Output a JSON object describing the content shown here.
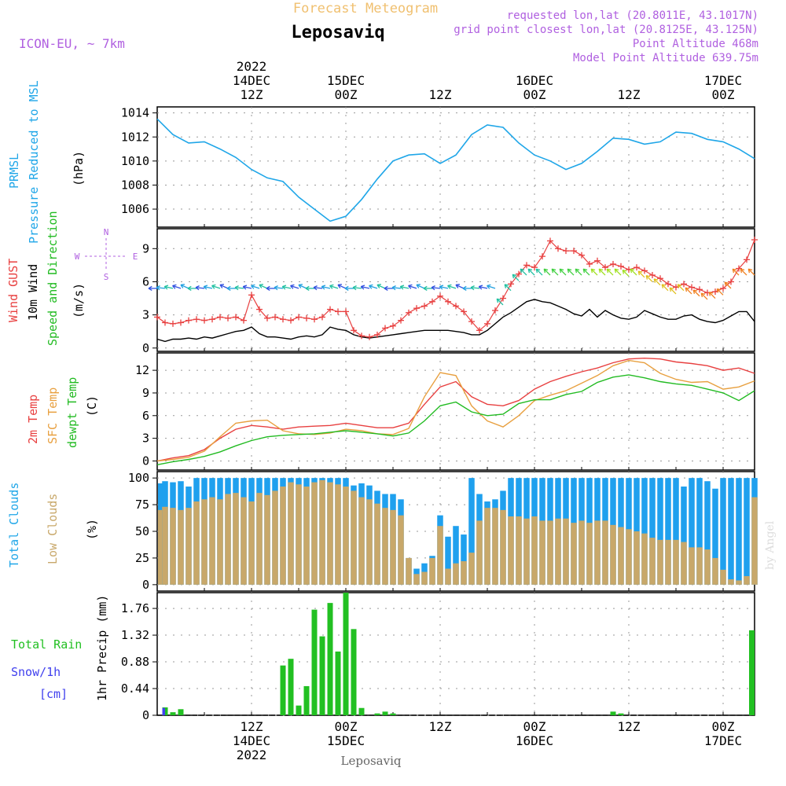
{
  "header": {
    "forecast_title": "Forecast Meteogram",
    "model": "ICON-EU, ~ 7km",
    "location": "Leposaviq",
    "requested": "requested lon,lat (20.8011E, 43.1017N)",
    "grid_point": "grid point closest lon,lat (20.8125E, 43.125N)",
    "point_altitude": "Point Altitude 468m",
    "model_altitude": "Model Point Altitude 639.75m",
    "footer_location": "Leposaviq",
    "watermark": "by Angel"
  },
  "colors": {
    "pressure": "#1fa6e8",
    "gust": "#e84040",
    "wind": "#000000",
    "temp": "#e84040",
    "sfc": "#e8a040",
    "dewpt": "#22bb22",
    "total_clouds": "#1fa0ee",
    "low_clouds": "#c8a86a",
    "rain": "#22c022",
    "snow": "#4040ee",
    "axis_label_violet": "#b060e0"
  },
  "time_axis": {
    "top_ticks": [
      {
        "hour": 12,
        "lines": [
          "2022",
          "14DEC",
          "12Z"
        ]
      },
      {
        "hour": 24,
        "lines": [
          "15DEC",
          "00Z"
        ]
      },
      {
        "hour": 36,
        "lines": [
          "12Z"
        ]
      },
      {
        "hour": 48,
        "lines": [
          "16DEC",
          "00Z"
        ]
      },
      {
        "hour": 60,
        "lines": [
          "12Z"
        ]
      },
      {
        "hour": 72,
        "lines": [
          "17DEC",
          "00Z"
        ]
      }
    ],
    "bottom_ticks": [
      {
        "hour": 12,
        "lines": [
          "12Z",
          "14DEC",
          "2022"
        ]
      },
      {
        "hour": 24,
        "lines": [
          "00Z",
          "15DEC"
        ]
      },
      {
        "hour": 36,
        "lines": [
          "12Z"
        ]
      },
      {
        "hour": 48,
        "lines": [
          "00Z",
          "16DEC"
        ]
      },
      {
        "hour": 60,
        "lines": [
          "12Z"
        ]
      },
      {
        "hour": 72,
        "lines": [
          "00Z",
          "17DEC"
        ]
      }
    ]
  },
  "panel_labels": {
    "pressure": [
      "PRMSL",
      "Pressure Reduced to MSL",
      "(hPa)"
    ],
    "wind": [
      "Wind GUST",
      "10m Wind",
      "Speed and Direction",
      "(m/s)"
    ],
    "compass": {
      "n": "N",
      "s": "S",
      "w": "W",
      "e": "E"
    },
    "temp": [
      "2m Temp",
      "SFC Temp",
      "dewpt Temp",
      "(C)"
    ],
    "clouds": [
      "Total Clouds",
      "Low Clouds",
      "(%)"
    ],
    "precip": [
      "Total Rain",
      "Snow/1h",
      "[cm]",
      "1hr Precip (mm)"
    ]
  },
  "chart_data": [
    {
      "type": "line",
      "name": "pressure",
      "x_hours": [
        0,
        2,
        4,
        6,
        8,
        10,
        12,
        14,
        16,
        18,
        20,
        22,
        24,
        26,
        28,
        30,
        32,
        34,
        36,
        38,
        40,
        42,
        44,
        46,
        48,
        50,
        52,
        54,
        56,
        58,
        60,
        62,
        64,
        66,
        68,
        70,
        72,
        74,
        76
      ],
      "series": [
        {
          "name": "PRMSL",
          "values": [
            1013.5,
            1012.2,
            1011.5,
            1011.6,
            1011.0,
            1010.3,
            1009.3,
            1008.6,
            1008.3,
            1007.0,
            1006.0,
            1005.0,
            1005.4,
            1006.8,
            1008.5,
            1010.0,
            1010.5,
            1010.6,
            1009.8,
            1010.5,
            1012.2,
            1013.0,
            1012.8,
            1011.5,
            1010.5,
            1010.0,
            1009.3,
            1009.8,
            1010.8,
            1011.9,
            1011.8,
            1011.4,
            1011.6,
            1012.4,
            1012.3,
            1011.8,
            1011.6,
            1011.0,
            1010.2
          ]
        }
      ],
      "ylabel": "(hPa)",
      "yticks": [
        1006,
        1008,
        1010,
        1012,
        1014
      ],
      "ylim": [
        1004.5,
        1014.5
      ]
    },
    {
      "type": "line",
      "name": "wind",
      "x_hours": [
        0,
        1,
        2,
        3,
        4,
        5,
        6,
        7,
        8,
        9,
        10,
        11,
        12,
        13,
        14,
        15,
        16,
        17,
        18,
        19,
        20,
        21,
        22,
        23,
        24,
        25,
        26,
        27,
        28,
        29,
        30,
        31,
        32,
        33,
        34,
        35,
        36,
        37,
        38,
        39,
        40,
        41,
        42,
        43,
        44,
        45,
        46,
        47,
        48,
        49,
        50,
        51,
        52,
        53,
        54,
        55,
        56,
        57,
        58,
        59,
        60,
        61,
        62,
        63,
        64,
        65,
        66,
        67,
        68,
        69,
        70,
        71,
        72,
        73,
        74,
        75,
        76
      ],
      "series": [
        {
          "name": "Wind GUST",
          "values": [
            2.8,
            2.3,
            2.2,
            2.3,
            2.5,
            2.6,
            2.5,
            2.6,
            2.8,
            2.7,
            2.8,
            2.5,
            4.8,
            3.5,
            2.7,
            2.8,
            2.6,
            2.5,
            2.8,
            2.7,
            2.6,
            2.8,
            3.5,
            3.3,
            3.3,
            1.6,
            1.1,
            1.0,
            1.2,
            1.8,
            2.0,
            2.5,
            3.2,
            3.6,
            3.8,
            4.2,
            4.7,
            4.2,
            3.8,
            3.3,
            2.4,
            1.6,
            2.2,
            3.4,
            4.5,
            5.8,
            6.7,
            7.5,
            7.3,
            8.3,
            9.7,
            9.0,
            8.8,
            8.8,
            8.4,
            7.6,
            7.9,
            7.3,
            7.6,
            7.4,
            7.1,
            7.3,
            7.0,
            6.6,
            6.3,
            5.8,
            5.5,
            5.8,
            5.5,
            5.3,
            5.0,
            5.1,
            5.4,
            6.0,
            7.2,
            8.0,
            9.8
          ]
        },
        {
          "name": "10m Wind",
          "values": [
            0.8,
            0.6,
            0.8,
            0.8,
            0.9,
            0.8,
            1.0,
            0.9,
            1.1,
            1.3,
            1.5,
            1.6,
            1.9,
            1.3,
            1.0,
            1.0,
            0.9,
            0.8,
            1.0,
            1.1,
            1.0,
            1.2,
            1.9,
            1.7,
            1.6,
            1.2,
            1.0,
            0.9,
            1.0,
            1.1,
            1.2,
            1.3,
            1.4,
            1.5,
            1.6,
            1.6,
            1.6,
            1.6,
            1.5,
            1.4,
            1.2,
            1.2,
            1.6,
            2.2,
            2.8,
            3.2,
            3.7,
            4.2,
            4.4,
            4.2,
            4.1,
            3.8,
            3.5,
            3.1,
            2.9,
            3.5,
            2.8,
            3.4,
            3.0,
            2.7,
            2.6,
            2.8,
            3.4,
            3.1,
            2.8,
            2.6,
            2.6,
            2.9,
            3.0,
            2.6,
            2.4,
            2.3,
            2.5,
            2.9,
            3.3,
            3.3,
            2.4
          ]
        }
      ],
      "ylabel": "(m/s)",
      "yticks": [
        0,
        3,
        6,
        9
      ],
      "ylim": [
        -0.3,
        10.8
      ]
    },
    {
      "type": "line",
      "name": "temperature",
      "x_hours": [
        0,
        2,
        4,
        6,
        8,
        10,
        12,
        14,
        16,
        18,
        20,
        22,
        24,
        26,
        28,
        30,
        32,
        34,
        36,
        38,
        40,
        42,
        44,
        46,
        48,
        50,
        52,
        54,
        56,
        58,
        60,
        62,
        64,
        66,
        68,
        70,
        72,
        74,
        76
      ],
      "series": [
        {
          "name": "2m Temp",
          "values": [
            0.0,
            0.4,
            0.7,
            1.5,
            3.0,
            4.2,
            4.7,
            4.5,
            4.2,
            4.5,
            4.6,
            4.7,
            5.0,
            4.7,
            4.4,
            4.4,
            5.0,
            7.5,
            9.8,
            10.5,
            8.5,
            7.5,
            7.3,
            8.0,
            9.5,
            10.5,
            11.2,
            11.8,
            12.3,
            13.0,
            13.5,
            13.6,
            13.5,
            13.1,
            12.9,
            12.6,
            12.0,
            12.3,
            11.6
          ]
        },
        {
          "name": "SFC Temp",
          "values": [
            0.0,
            0.2,
            0.5,
            1.3,
            3.2,
            5.0,
            5.3,
            5.4,
            4.0,
            3.6,
            3.5,
            3.7,
            4.2,
            4.0,
            3.6,
            3.5,
            4.3,
            8.5,
            11.7,
            11.3,
            7.3,
            5.3,
            4.5,
            6.0,
            8.0,
            8.7,
            9.3,
            10.3,
            11.3,
            12.6,
            13.3,
            13.0,
            11.6,
            10.8,
            10.4,
            10.5,
            9.5,
            9.8,
            10.6
          ]
        },
        {
          "name": "dewpt Temp",
          "values": [
            -0.5,
            -0.1,
            0.2,
            0.6,
            1.2,
            2.0,
            2.7,
            3.2,
            3.4,
            3.5,
            3.6,
            3.8,
            4.0,
            3.8,
            3.6,
            3.3,
            3.7,
            5.3,
            7.3,
            7.8,
            6.5,
            6.0,
            6.2,
            7.6,
            8.1,
            8.1,
            8.8,
            9.2,
            10.4,
            11.1,
            11.4,
            11.0,
            10.5,
            10.2,
            10.0,
            9.5,
            9.0,
            8.0,
            9.3
          ]
        }
      ],
      "ylabel": "(C)",
      "yticks": [
        0,
        3,
        6,
        9,
        12
      ],
      "ylim": [
        -1.2,
        14.3
      ]
    },
    {
      "type": "bar",
      "name": "clouds",
      "x_hours": [
        0,
        1,
        2,
        3,
        4,
        5,
        6,
        7,
        8,
        9,
        10,
        11,
        12,
        13,
        14,
        15,
        16,
        17,
        18,
        19,
        20,
        21,
        22,
        23,
        24,
        25,
        26,
        27,
        28,
        29,
        30,
        31,
        32,
        33,
        34,
        35,
        36,
        37,
        38,
        39,
        40,
        41,
        42,
        43,
        44,
        45,
        46,
        47,
        48,
        49,
        50,
        51,
        52,
        53,
        54,
        55,
        56,
        57,
        58,
        59,
        60,
        61,
        62,
        63,
        64,
        65,
        66,
        67,
        68,
        69,
        70,
        71,
        72,
        73,
        74,
        75,
        76
      ],
      "series": [
        {
          "name": "Total Clouds",
          "values": [
            95,
            97,
            96,
            97,
            92,
            100,
            100,
            100,
            100,
            100,
            100,
            100,
            100,
            100,
            100,
            100,
            100,
            100,
            100,
            100,
            100,
            100,
            100,
            100,
            100,
            93,
            95,
            93,
            88,
            85,
            85,
            80,
            25,
            15,
            20,
            27,
            65,
            45,
            55,
            47,
            100,
            85,
            78,
            80,
            88,
            100,
            100,
            100,
            100,
            100,
            100,
            100,
            100,
            100,
            100,
            100,
            100,
            100,
            100,
            100,
            100,
            100,
            100,
            100,
            100,
            100,
            100,
            92,
            100,
            100,
            97,
            90,
            100,
            100,
            100,
            100,
            100
          ]
        },
        {
          "name": "Low Clouds",
          "values": [
            70,
            73,
            72,
            70,
            72,
            78,
            80,
            82,
            80,
            85,
            86,
            82,
            78,
            86,
            84,
            88,
            92,
            96,
            94,
            92,
            96,
            98,
            96,
            94,
            92,
            88,
            82,
            80,
            76,
            72,
            70,
            65,
            25,
            10,
            12,
            25,
            55,
            15,
            20,
            22,
            30,
            60,
            72,
            72,
            70,
            64,
            64,
            62,
            64,
            60,
            60,
            62,
            62,
            58,
            60,
            58,
            60,
            60,
            56,
            54,
            52,
            50,
            48,
            44,
            42,
            42,
            42,
            40,
            35,
            35,
            33,
            25,
            14,
            5,
            4,
            8,
            82
          ]
        }
      ],
      "ylabel": "(%)",
      "yticks": [
        0,
        25,
        50,
        75,
        100
      ],
      "ylim": [
        -6,
        106
      ]
    },
    {
      "type": "bar",
      "name": "precipitation",
      "x_hours": [
        0,
        1,
        2,
        3,
        4,
        5,
        6,
        7,
        8,
        9,
        10,
        11,
        12,
        13,
        14,
        15,
        16,
        17,
        18,
        19,
        20,
        21,
        22,
        23,
        24,
        25,
        26,
        27,
        28,
        29,
        30,
        31,
        32,
        33,
        34,
        35,
        36,
        37,
        38,
        39,
        40,
        41,
        42,
        43,
        44,
        45,
        46,
        47,
        48,
        49,
        50,
        51,
        52,
        53,
        54,
        55,
        56,
        57,
        58,
        59,
        60,
        61,
        62,
        63,
        64,
        65,
        66,
        67,
        68,
        69,
        70,
        71,
        72,
        73,
        74,
        75,
        76
      ],
      "series": [
        {
          "name": "Total Rain",
          "values": [
            0,
            0.13,
            0.05,
            0.1,
            0,
            0,
            0,
            0,
            0,
            0,
            0,
            0,
            0,
            0,
            0,
            0,
            0.82,
            0.93,
            0.16,
            0.48,
            1.74,
            1.3,
            1.85,
            1.05,
            2.02,
            1.42,
            0.12,
            0,
            0.03,
            0.06,
            0.03,
            0,
            0,
            0,
            0,
            0,
            0,
            0,
            0,
            0,
            0,
            0,
            0,
            0,
            0,
            0,
            0,
            0,
            0,
            0,
            0,
            0,
            0,
            0,
            0,
            0,
            0,
            0,
            0.06,
            0.03,
            0,
            0,
            0,
            0,
            0,
            0,
            0,
            0,
            0,
            0,
            0,
            0,
            0,
            0,
            0,
            0,
            1.4
          ]
        },
        {
          "name": "Snow/1h",
          "values": [
            0,
            0.12,
            0,
            0,
            0,
            0,
            0,
            0,
            0,
            0,
            0,
            0,
            0,
            0,
            0,
            0,
            0,
            0,
            0,
            0,
            0,
            0,
            0,
            0,
            0,
            0,
            0,
            0,
            0,
            0,
            0,
            0,
            0,
            0,
            0,
            0,
            0,
            0,
            0,
            0,
            0,
            0,
            0,
            0,
            0,
            0,
            0,
            0,
            0,
            0,
            0,
            0,
            0,
            0,
            0,
            0,
            0,
            0,
            0,
            0,
            0,
            0,
            0,
            0,
            0,
            0,
            0,
            0,
            0,
            0,
            0,
            0,
            0,
            0,
            0,
            0,
            0
          ]
        }
      ],
      "ylabel": "1hr Precip (mm)",
      "yticks": [
        0,
        0.44,
        0.88,
        1.32,
        1.76
      ],
      "ylim": [
        0,
        2.02
      ]
    }
  ]
}
